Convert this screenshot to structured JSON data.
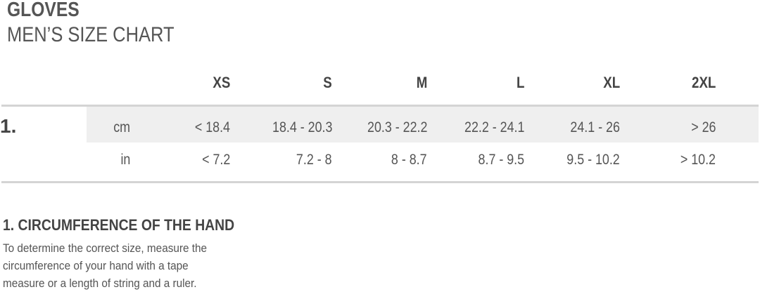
{
  "title": "GLOVES",
  "subtitle": "MEN’S SIZE CHART",
  "sizes": [
    "XS",
    "S",
    "M",
    "L",
    "XL",
    "2XL"
  ],
  "measurements": [
    {
      "number": "1.",
      "rows": [
        {
          "unit": "cm",
          "values": [
            "< 18.4",
            "18.4 - 20.3",
            "20.3 - 22.2",
            "22.2 - 24.1",
            "24.1 - 26",
            "> 26"
          ]
        },
        {
          "unit": "in",
          "values": [
            "< 7.2",
            "7.2 - 8",
            "8 - 8.7",
            "8.7 - 9.5",
            "9.5 - 10.2",
            "> 10.2"
          ]
        }
      ]
    }
  ],
  "note": {
    "title": "1. CIRCUMFERENCE OF THE HAND",
    "body": "To determine the correct size, measure the circumference of your hand with a tape measure or a length of string and a ruler."
  }
}
